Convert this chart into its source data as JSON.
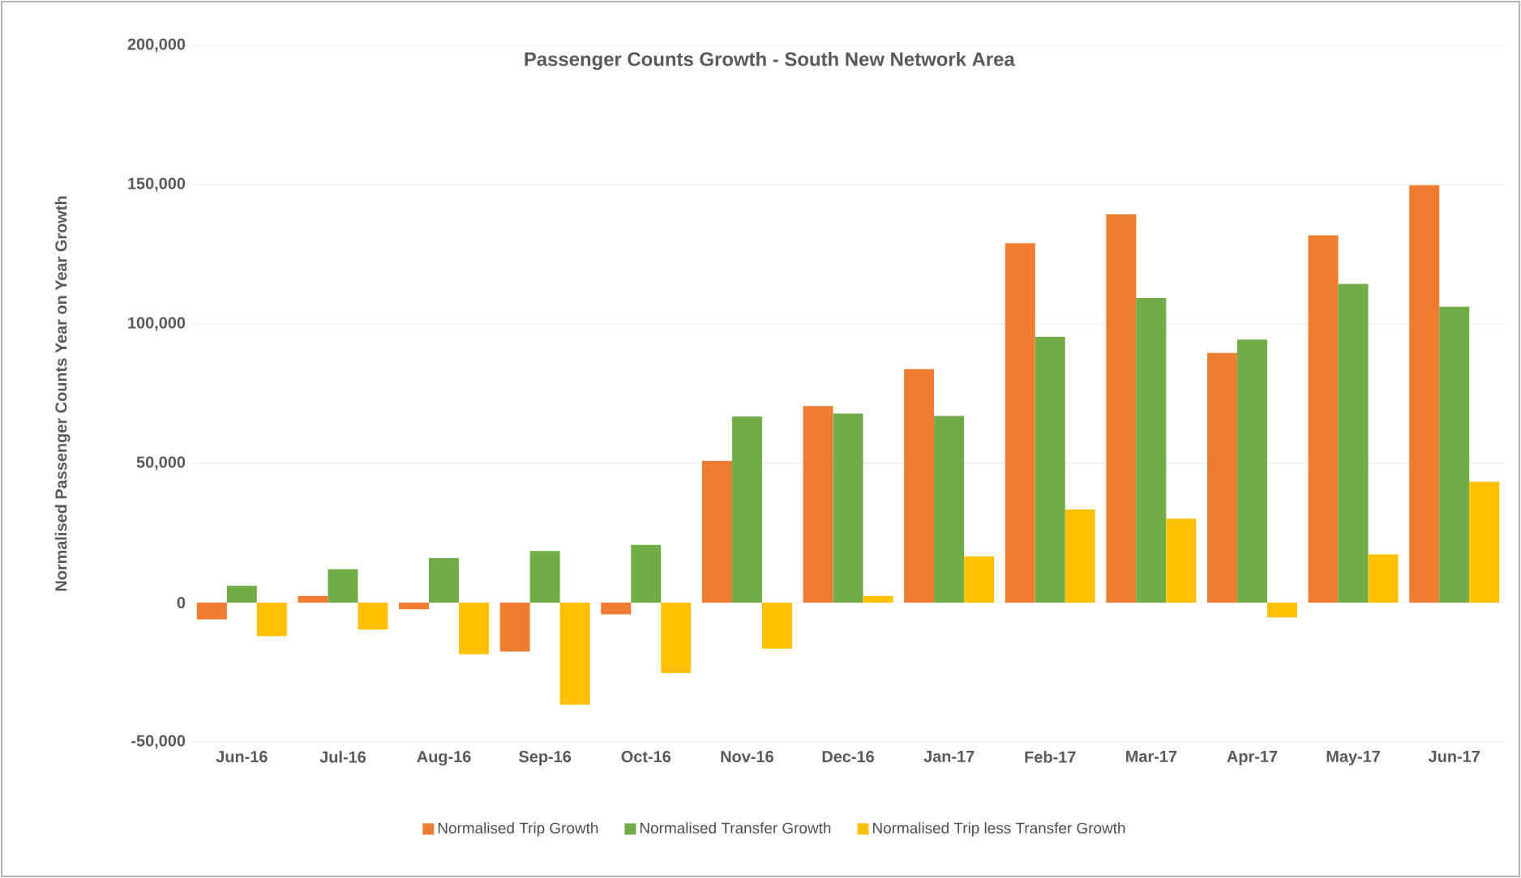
{
  "chart_data": {
    "type": "bar",
    "title": "Passenger Counts Growth - South New Network Area",
    "ylabel": "Normalised Passenger Counts Year on Year Growth",
    "categories": [
      "Jun-16",
      "Jul-16",
      "Aug-16",
      "Sep-16",
      "Oct-16",
      "Nov-16",
      "Dec-16",
      "Jan-17",
      "Feb-17",
      "Mar-17",
      "Apr-17",
      "May-17",
      "Jun-17"
    ],
    "series": [
      {
        "name": "Normalised Trip Growth",
        "color": "#ed7d31",
        "values": [
          -6000,
          2400,
          -2400,
          -17600,
          -4200,
          50900,
          70600,
          83800,
          129000,
          139400,
          89600,
          131800,
          149800
        ]
      },
      {
        "name": "Normalised Transfer Growth",
        "color": "#70ad47",
        "values": [
          6000,
          12000,
          16000,
          18500,
          20700,
          66800,
          67900,
          67000,
          95400,
          109300,
          94400,
          114400,
          106200
        ]
      },
      {
        "name": "Normalised Trip less Transfer Growth",
        "color": "#ffc000",
        "values": [
          -12000,
          -9700,
          -18500,
          -36600,
          -25300,
          -16500,
          2400,
          16600,
          33400,
          30100,
          -5300,
          17300,
          43400
        ]
      }
    ],
    "ylim": [
      -50000,
      200000
    ],
    "yticks": [
      {
        "value": -50000,
        "label": "-50,000"
      },
      {
        "value": 0,
        "label": "0"
      },
      {
        "value": 50000,
        "label": "50,000"
      },
      {
        "value": 100000,
        "label": "100,000"
      },
      {
        "value": 150000,
        "label": "150,000"
      },
      {
        "value": 200000,
        "label": "200,000"
      }
    ],
    "grid": "y",
    "legend": "bottom"
  }
}
